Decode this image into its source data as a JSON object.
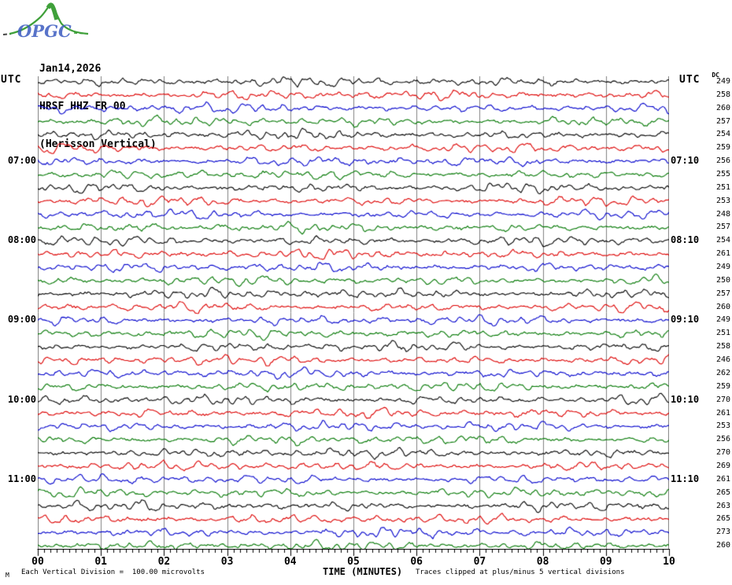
{
  "header": {
    "logo": "OPGC",
    "line1": "Jan14,2026",
    "line2": "HRSF HHZ FR 00",
    "line3": "(Herisson Vertical)"
  },
  "labels": {
    "utc_left": "UTC",
    "utc_right": "UTC",
    "dc": "DC",
    "time_axis": "TIME (MINUTES)"
  },
  "footer": {
    "scale_marker": "M",
    "scale_note": "Each Vertical Division =  100.00 microvolts",
    "clip_note": "Traces clipped at plus/minus 5 vertical divisions"
  },
  "colors": {
    "trace_black": "#000000",
    "trace_red": "#dd0000",
    "trace_blue": "#0000cc",
    "trace_green": "#007700",
    "grid": "#808080",
    "logo_green": "#3fa03a",
    "logo_blue": "#3b5bc0"
  },
  "chart_data": {
    "type": "line",
    "title": "Helicorder seismogram HRSF HHZ FR 00 (Herisson Vertical) Jan14,2026",
    "xlabel": "TIME (MINUTES)",
    "x_range_minutes": [
      0,
      10
    ],
    "minute_labels": [
      "00",
      "01",
      "02",
      "03",
      "04",
      "05",
      "06",
      "07",
      "08",
      "09",
      "10"
    ],
    "minor_ticks_per_minute": 10,
    "row_duration_minutes": 10,
    "microvolts_per_division": 100.0,
    "clip_divisions": 5,
    "waveform": "continuous background seismic noise, irregular oscillations within about ±2 vertical divisions on every row",
    "color_cycle": [
      "trace_black",
      "trace_red",
      "trace_blue",
      "trace_green"
    ],
    "hour_labels_left": [
      "07:00",
      "08:00",
      "09:00",
      "10:00",
      "11:00"
    ],
    "hour_labels_right": [
      "07:10",
      "08:10",
      "09:10",
      "10:10",
      "11:10"
    ],
    "rows": [
      {
        "start": "06:00",
        "color": "trace_black",
        "dc": 249,
        "left_label": "",
        "right_label": ""
      },
      {
        "start": "06:10",
        "color": "trace_red",
        "dc": 258,
        "left_label": "",
        "right_label": ""
      },
      {
        "start": "06:20",
        "color": "trace_blue",
        "dc": 260,
        "left_label": "",
        "right_label": ""
      },
      {
        "start": "06:30",
        "color": "trace_green",
        "dc": 257,
        "left_label": "",
        "right_label": ""
      },
      {
        "start": "06:40",
        "color": "trace_black",
        "dc": 254,
        "left_label": "",
        "right_label": ""
      },
      {
        "start": "06:50",
        "color": "trace_red",
        "dc": 259,
        "left_label": "",
        "right_label": ""
      },
      {
        "start": "07:00",
        "color": "trace_blue",
        "dc": 256,
        "left_label": "07:00",
        "right_label": "07:10"
      },
      {
        "start": "07:10",
        "color": "trace_green",
        "dc": 255,
        "left_label": "",
        "right_label": ""
      },
      {
        "start": "07:20",
        "color": "trace_black",
        "dc": 251,
        "left_label": "",
        "right_label": ""
      },
      {
        "start": "07:30",
        "color": "trace_red",
        "dc": 253,
        "left_label": "",
        "right_label": ""
      },
      {
        "start": "07:40",
        "color": "trace_blue",
        "dc": 248,
        "left_label": "",
        "right_label": ""
      },
      {
        "start": "07:50",
        "color": "trace_green",
        "dc": 257,
        "left_label": "",
        "right_label": ""
      },
      {
        "start": "08:00",
        "color": "trace_black",
        "dc": 254,
        "left_label": "08:00",
        "right_label": "08:10"
      },
      {
        "start": "08:10",
        "color": "trace_red",
        "dc": 261,
        "left_label": "",
        "right_label": ""
      },
      {
        "start": "08:20",
        "color": "trace_blue",
        "dc": 249,
        "left_label": "",
        "right_label": ""
      },
      {
        "start": "08:30",
        "color": "trace_green",
        "dc": 250,
        "left_label": "",
        "right_label": ""
      },
      {
        "start": "08:40",
        "color": "trace_black",
        "dc": 257,
        "left_label": "",
        "right_label": ""
      },
      {
        "start": "08:50",
        "color": "trace_red",
        "dc": 260,
        "left_label": "",
        "right_label": ""
      },
      {
        "start": "09:00",
        "color": "trace_blue",
        "dc": 249,
        "left_label": "09:00",
        "right_label": "09:10"
      },
      {
        "start": "09:10",
        "color": "trace_green",
        "dc": 251,
        "left_label": "",
        "right_label": ""
      },
      {
        "start": "09:20",
        "color": "trace_black",
        "dc": 258,
        "left_label": "",
        "right_label": ""
      },
      {
        "start": "09:30",
        "color": "trace_red",
        "dc": 246,
        "left_label": "",
        "right_label": ""
      },
      {
        "start": "09:40",
        "color": "trace_blue",
        "dc": 262,
        "left_label": "",
        "right_label": ""
      },
      {
        "start": "09:50",
        "color": "trace_green",
        "dc": 259,
        "left_label": "",
        "right_label": ""
      },
      {
        "start": "10:00",
        "color": "trace_black",
        "dc": 270,
        "left_label": "10:00",
        "right_label": "10:10"
      },
      {
        "start": "10:10",
        "color": "trace_red",
        "dc": 261,
        "left_label": "",
        "right_label": ""
      },
      {
        "start": "10:20",
        "color": "trace_blue",
        "dc": 253,
        "left_label": "",
        "right_label": ""
      },
      {
        "start": "10:30",
        "color": "trace_green",
        "dc": 256,
        "left_label": "",
        "right_label": ""
      },
      {
        "start": "10:40",
        "color": "trace_black",
        "dc": 270,
        "left_label": "",
        "right_label": ""
      },
      {
        "start": "10:50",
        "color": "trace_red",
        "dc": 269,
        "left_label": "",
        "right_label": ""
      },
      {
        "start": "11:00",
        "color": "trace_blue",
        "dc": 261,
        "left_label": "11:00",
        "right_label": "11:10"
      },
      {
        "start": "11:10",
        "color": "trace_green",
        "dc": 265,
        "left_label": "",
        "right_label": ""
      },
      {
        "start": "11:20",
        "color": "trace_black",
        "dc": 263,
        "left_label": "",
        "right_label": ""
      },
      {
        "start": "11:30",
        "color": "trace_red",
        "dc": 265,
        "left_label": "",
        "right_label": ""
      },
      {
        "start": "11:40",
        "color": "trace_blue",
        "dc": 273,
        "left_label": "",
        "right_label": ""
      },
      {
        "start": "11:50",
        "color": "trace_green",
        "dc": 260,
        "left_label": "",
        "right_label": ""
      }
    ]
  }
}
